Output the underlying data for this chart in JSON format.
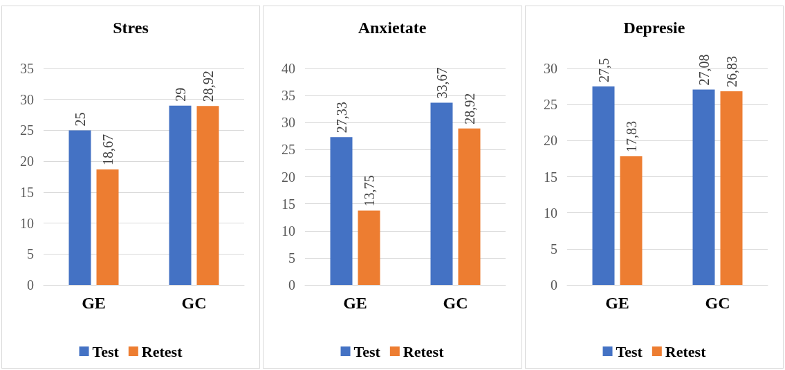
{
  "chart_data": [
    {
      "type": "bar",
      "title": "Stres",
      "categories": [
        "GE",
        "GC"
      ],
      "series": [
        {
          "name": "Test",
          "color": "#4472c4",
          "values": [
            25,
            29
          ],
          "value_labels": [
            "25",
            "29"
          ]
        },
        {
          "name": "Retest",
          "color": "#ed7d31",
          "values": [
            18.67,
            28.92
          ],
          "value_labels": [
            "18,67",
            "28,92"
          ]
        }
      ],
      "ylim": [
        0,
        35
      ],
      "yticks": [
        0,
        5,
        10,
        15,
        20,
        25,
        30,
        35
      ],
      "grid": "y",
      "legend": "bottom"
    },
    {
      "type": "bar",
      "title": "Anxietate",
      "categories": [
        "GE",
        "GC"
      ],
      "series": [
        {
          "name": "Test",
          "color": "#4472c4",
          "values": [
            27.33,
            33.67
          ],
          "value_labels": [
            "27,33",
            "33,67"
          ]
        },
        {
          "name": "Retest",
          "color": "#ed7d31",
          "values": [
            13.75,
            28.92
          ],
          "value_labels": [
            "13,75",
            "28,92"
          ]
        }
      ],
      "ylim": [
        0,
        40
      ],
      "yticks": [
        0,
        5,
        10,
        15,
        20,
        25,
        30,
        35,
        40
      ],
      "grid": "y",
      "legend": "bottom"
    },
    {
      "type": "bar",
      "title": "Depresie",
      "categories": [
        "GE",
        "GC"
      ],
      "series": [
        {
          "name": "Test",
          "color": "#4472c4",
          "values": [
            27.5,
            27.08
          ],
          "value_labels": [
            "27,5",
            "27,08"
          ]
        },
        {
          "name": "Retest",
          "color": "#ed7d31",
          "values": [
            17.83,
            26.83
          ],
          "value_labels": [
            "17,83",
            "26,83"
          ]
        }
      ],
      "ylim": [
        0,
        30
      ],
      "yticks": [
        0,
        5,
        10,
        15,
        20,
        25,
        30
      ],
      "grid": "y",
      "legend": "bottom"
    }
  ]
}
